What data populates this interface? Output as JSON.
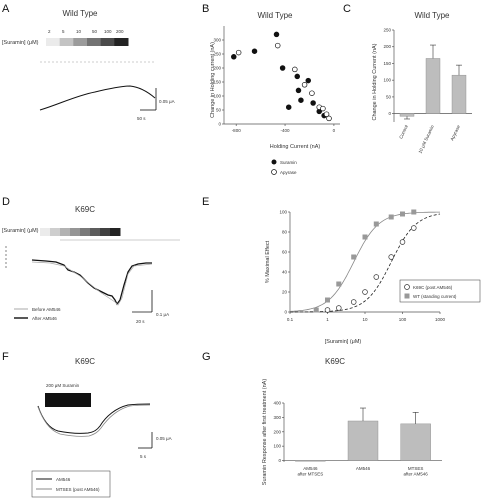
{
  "panels": {
    "A": {
      "letter": "A",
      "title": "Wild Type",
      "suramin_label": "[Suramin] (μM)",
      "conc_labels": [
        "2",
        "5",
        "10",
        "50",
        "100",
        "200"
      ],
      "scale_current": "0.05 μA",
      "scale_time": "50 s"
    },
    "D": {
      "letter": "D",
      "title": "K69C",
      "suramin_label": "[Suramin] (μM)",
      "scale_current": "0.1 μA",
      "scale_time": "20 s",
      "legend": [
        "Before AM546",
        "After AM546"
      ]
    },
    "F": {
      "letter": "F",
      "title": "K69C",
      "bar_label": "200 μM Suramin",
      "scale_current": "0.05 μA",
      "scale_time": "5 s",
      "legend": [
        "AM546",
        "MTSES (post AM546)"
      ]
    }
  },
  "chart_data": [
    {
      "id": "B",
      "letter": "B",
      "type": "scatter",
      "title": "Wild Type",
      "xlabel": "Holding Current (nA)",
      "ylabel": "Change in Holding current (nA)",
      "xlim": [
        -900,
        50
      ],
      "ylim": [
        0,
        350
      ],
      "xticks": [
        "-800",
        "-400",
        "0"
      ],
      "yticks": [
        "0",
        "50",
        "100",
        "150",
        "200",
        "250",
        "300"
      ],
      "series": [
        {
          "name": "Suramin",
          "marker": "filled",
          "points": [
            [
              -820,
              240
            ],
            [
              -650,
              260
            ],
            [
              -470,
              320
            ],
            [
              -420,
              200
            ],
            [
              -300,
              170
            ],
            [
              -290,
              120
            ],
            [
              -270,
              85
            ],
            [
              -370,
              60
            ],
            [
              -210,
              155
            ],
            [
              -170,
              75
            ],
            [
              -120,
              45
            ],
            [
              -80,
              30
            ]
          ]
        },
        {
          "name": "Apyrase",
          "marker": "open",
          "points": [
            [
              -780,
              255
            ],
            [
              -460,
              280
            ],
            [
              -320,
              195
            ],
            [
              -240,
              140
            ],
            [
              -180,
              110
            ],
            [
              -120,
              60
            ],
            [
              -90,
              55
            ],
            [
              -60,
              35
            ],
            [
              -40,
              20
            ]
          ]
        }
      ],
      "legend": [
        "Suramin",
        "Apyrase"
      ]
    },
    {
      "id": "C",
      "letter": "C",
      "type": "bar",
      "title": "Wild Type",
      "ylabel": "Change in Holding Current (nA)",
      "categories": [
        "Control",
        "10 μM Suramin",
        "Apyrase"
      ],
      "values": [
        -8,
        165,
        115
      ],
      "errors": [
        8,
        40,
        30
      ],
      "ylim": [
        -25,
        250
      ],
      "yticks": [
        "0",
        "50",
        "100",
        "150",
        "200",
        "250"
      ]
    },
    {
      "id": "E",
      "letter": "E",
      "type": "line",
      "title": "",
      "xlabel": "[Suramin] (μM)",
      "ylabel": "% Maximal Effect",
      "xscale": "log",
      "xlim": [
        0.1,
        1000
      ],
      "ylim": [
        0,
        100
      ],
      "xticks": [
        "0.1",
        "1",
        "10",
        "100",
        "1000"
      ],
      "yticks": [
        "0",
        "20",
        "40",
        "60",
        "80",
        "100"
      ],
      "series": [
        {
          "name": "K69C (post AM546)",
          "marker": "open",
          "ec50": 50,
          "hill": 1.3,
          "x": [
            1,
            2,
            5,
            10,
            20,
            50,
            100,
            200
          ],
          "y": [
            2,
            4,
            10,
            20,
            35,
            55,
            70,
            84
          ]
        },
        {
          "name": "WT (standing current)",
          "marker": "square",
          "ec50": 5,
          "hill": 1.3,
          "x": [
            0.5,
            1,
            2,
            5,
            10,
            20,
            50,
            100,
            200
          ],
          "y": [
            2,
            12,
            28,
            55,
            75,
            88,
            95,
            98,
            100
          ]
        }
      ]
    },
    {
      "id": "G",
      "letter": "G",
      "type": "bar",
      "title": "K69C",
      "ylabel": "Suramin Response after first treatment (nA)",
      "categories": [
        "AM546 after MTSES",
        "AM546",
        "MTSES after AM546"
      ],
      "values": [
        -5,
        275,
        255
      ],
      "errors": [
        0,
        90,
        80
      ],
      "ylim": [
        -10,
        400
      ],
      "yticks": [
        "0",
        "100",
        "200",
        "300",
        "400"
      ]
    }
  ]
}
